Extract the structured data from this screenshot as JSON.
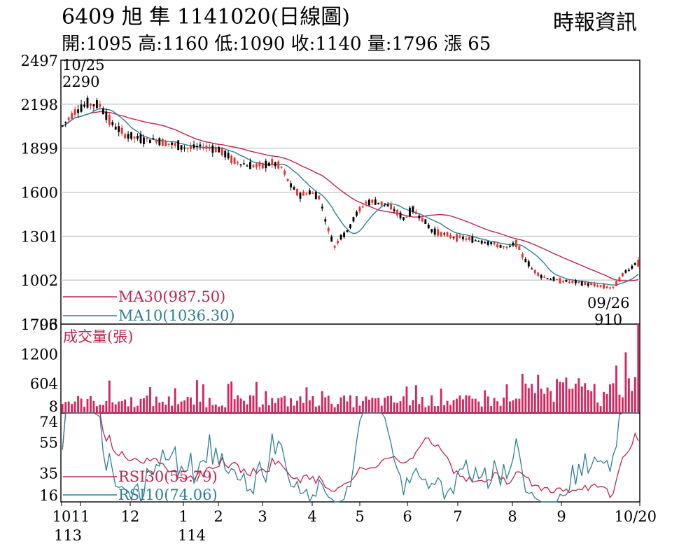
{
  "header": {
    "title": "6409  旭  隼 1141020(日線圖)",
    "source": "時報資訊",
    "ohlc": "開:1095 高:1160 低:1090 收:1140 量:1796 漲 65"
  },
  "colors": {
    "up": "#e8312c",
    "down": "#000000",
    "ma30": "#c0254e",
    "ma10": "#2f7f94",
    "volume": "#d6245e",
    "grid": "#b5b5b5"
  },
  "chart_data": [
    {
      "type": "candlestick",
      "title": "6409 旭 隼 1141020(日線圖)",
      "ylim": [
        703,
        2497
      ],
      "yticks": [
        "2497",
        "2198",
        "1899",
        "1600",
        "1301",
        "1002",
        "703"
      ],
      "xticks": [
        "10",
        "11",
        "12",
        "1",
        "2",
        "3",
        "4",
        "5",
        "6",
        "7",
        "8",
        "9",
        "10/20"
      ],
      "xticks_sub": [
        "113",
        "114"
      ],
      "annotations": [
        {
          "label": "10/25",
          "value": "2290",
          "note": "high"
        },
        {
          "label": "09/26",
          "value": "910",
          "note": "low"
        }
      ],
      "last_bar": {
        "open": 1095,
        "high": 1160,
        "low": 1090,
        "close": 1140
      },
      "series": [
        {
          "name": "MA30(987.50)",
          "last": 987.5
        },
        {
          "name": "MA10(1036.30)",
          "last": 1036.3
        }
      ],
      "trend_points": [
        [
          0,
          2050
        ],
        [
          4,
          2150
        ],
        [
          8,
          2200
        ],
        [
          12,
          2190
        ],
        [
          16,
          2060
        ],
        [
          20,
          1990
        ],
        [
          25,
          1960
        ],
        [
          30,
          1955
        ],
        [
          35,
          1925
        ],
        [
          40,
          1900
        ],
        [
          45,
          1910
        ],
        [
          50,
          1890
        ],
        [
          55,
          1810
        ],
        [
          60,
          1780
        ],
        [
          64,
          1780
        ],
        [
          67,
          1800
        ],
        [
          70,
          1770
        ],
        [
          73,
          1640
        ],
        [
          76,
          1580
        ],
        [
          79,
          1600
        ],
        [
          82,
          1570
        ],
        [
          85,
          1340
        ],
        [
          87,
          1230
        ],
        [
          89,
          1300
        ],
        [
          91,
          1330
        ],
        [
          93,
          1420
        ],
        [
          95,
          1480
        ],
        [
          97,
          1530
        ],
        [
          100,
          1535
        ],
        [
          103,
          1520
        ],
        [
          106,
          1480
        ],
        [
          109,
          1420
        ],
        [
          112,
          1480
        ],
        [
          115,
          1420
        ],
        [
          118,
          1340
        ],
        [
          121,
          1320
        ],
        [
          124,
          1300
        ],
        [
          127,
          1290
        ],
        [
          130,
          1280
        ],
        [
          133,
          1270
        ],
        [
          136,
          1260
        ],
        [
          139,
          1240
        ],
        [
          142,
          1220
        ],
        [
          145,
          1255
        ],
        [
          147,
          1170
        ],
        [
          150,
          1080
        ],
        [
          153,
          1030
        ],
        [
          156,
          1010
        ],
        [
          159,
          1000
        ],
        [
          162,
          990
        ],
        [
          165,
          985
        ],
        [
          168,
          975
        ],
        [
          171,
          965
        ],
        [
          174,
          955
        ],
        [
          176,
          950
        ],
        [
          178,
          1010
        ],
        [
          180,
          1060
        ],
        [
          182,
          1090
        ],
        [
          184,
          1140
        ]
      ]
    },
    {
      "type": "bar",
      "title": "成交量(張)",
      "yticks": [
        "1796",
        "1200",
        "604",
        "8"
      ],
      "ylim": [
        8,
        1796
      ],
      "last": 1796
    },
    {
      "type": "line",
      "yticks": [
        "74",
        "55",
        "35",
        "16"
      ],
      "ylim": [
        16,
        74
      ],
      "series": [
        {
          "name": "RSI30(55.79)",
          "last": 55.79
        },
        {
          "name": "RSI10(74.06)",
          "last": 74.06
        }
      ]
    }
  ]
}
